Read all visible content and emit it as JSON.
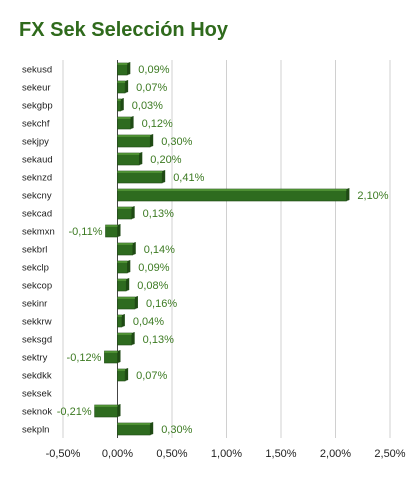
{
  "chart_data": {
    "type": "bar",
    "orientation": "horizontal",
    "title": "FX Sek Selección Hoy",
    "categories": [
      "sekusd",
      "sekeur",
      "sekgbp",
      "sekchf",
      "sekjpy",
      "sekaud",
      "seknzd",
      "sekcny",
      "sekcad",
      "sekmxn",
      "sekbrl",
      "sekclp",
      "sekcop",
      "sekinr",
      "sekkrw",
      "seksgd",
      "sektry",
      "sekdkk",
      "seksek",
      "seknok",
      "sekpln"
    ],
    "values": [
      0.09,
      0.07,
      0.03,
      0.12,
      0.3,
      0.2,
      0.41,
      2.1,
      0.13,
      -0.11,
      0.14,
      0.09,
      0.08,
      0.16,
      0.04,
      0.13,
      -0.12,
      0.07,
      null,
      -0.21,
      0.3
    ],
    "value_labels": [
      "0,09%",
      "0,07%",
      "0,03%",
      "0,12%",
      "0,30%",
      "0,20%",
      "0,41%",
      "2,10%",
      "0,13%",
      "-0,11%",
      "0,14%",
      "0,09%",
      "0,08%",
      "0,16%",
      "0,04%",
      "0,13%",
      "-0,12%",
      "0,07%",
      "",
      "-0,21%",
      "0,30%"
    ],
    "xlim": [
      -0.5,
      2.5
    ],
    "xticks": [
      -0.5,
      0,
      0.5,
      1.0,
      1.5,
      2.0,
      2.5
    ],
    "xtick_labels": [
      "-0,50%",
      "0,00%",
      "0,50%",
      "1,00%",
      "1,50%",
      "2,00%",
      "2,50%"
    ],
    "xlabel": "",
    "ylabel": "",
    "grid": true,
    "legend": "none",
    "colors": {
      "bar": "#2e6b1f",
      "bar_shade": "#1f4a14",
      "bar_top": "#4d8f33",
      "label": "#3c7a22",
      "title": "#2f6a1c",
      "grid": "#d0d0d0"
    }
  }
}
